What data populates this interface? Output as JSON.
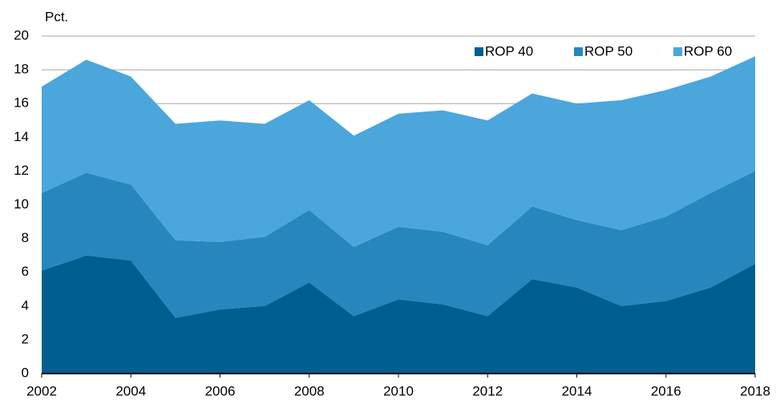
{
  "chart_data": {
    "type": "stacked_area",
    "y_label": "Pct.",
    "x": [
      2002,
      2003,
      2004,
      2005,
      2006,
      2007,
      2008,
      2009,
      2010,
      2011,
      2012,
      2013,
      2014,
      2015,
      2016,
      2017,
      2018
    ],
    "series": [
      {
        "name": "ROP 40",
        "color": "#005e8f",
        "values": [
          6.1,
          7.0,
          6.7,
          3.3,
          3.8,
          4.0,
          5.4,
          3.4,
          4.4,
          4.1,
          3.4,
          5.6,
          5.1,
          4.0,
          4.3,
          5.1,
          6.5
        ]
      },
      {
        "name": "ROP 50",
        "color": "#2787bd",
        "values": [
          4.6,
          4.9,
          4.5,
          4.6,
          4.0,
          4.1,
          4.3,
          4.1,
          4.3,
          4.3,
          4.2,
          4.3,
          4.0,
          4.5,
          5.0,
          5.6,
          5.5
        ]
      },
      {
        "name": "ROP 60",
        "color": "#4ba6dc",
        "values": [
          6.3,
          6.7,
          6.4,
          6.9,
          7.2,
          6.7,
          6.5,
          6.6,
          6.7,
          7.2,
          7.4,
          6.7,
          6.9,
          7.7,
          7.5,
          6.9,
          6.8
        ]
      }
    ],
    "xlim": [
      2002,
      2018
    ],
    "xticks": [
      2002,
      2004,
      2006,
      2008,
      2010,
      2012,
      2014,
      2016,
      2018
    ],
    "ylim": [
      0,
      20
    ],
    "yticks": [
      0,
      2,
      4,
      6,
      8,
      10,
      12,
      14,
      16,
      18,
      20
    ],
    "grid": true,
    "legend": "top-right"
  }
}
